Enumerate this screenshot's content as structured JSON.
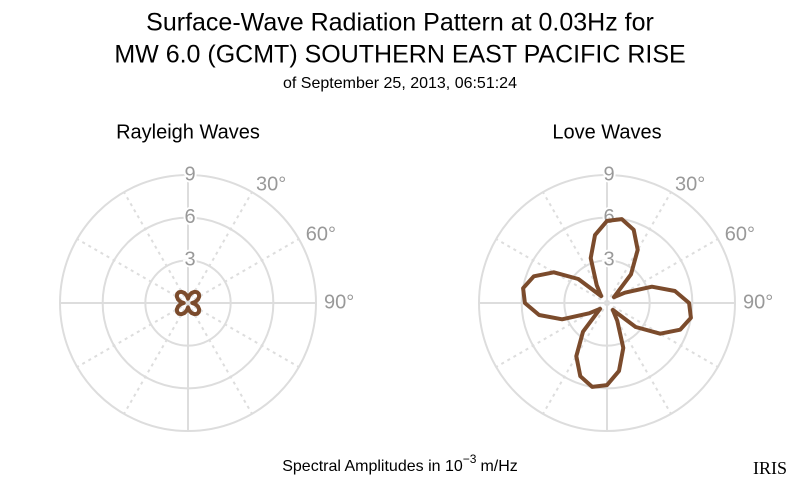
{
  "header": {
    "title_lines": [
      "Surface-Wave Radiation Pattern at 0.03Hz for",
      "MW 6.0 (GCMT) SOUTHERN EAST PACIFIC RISE"
    ],
    "subtitle": "of September 25, 2013, 06:51:24"
  },
  "chart_data": [
    {
      "type": "polar",
      "title": "Rayleigh Waves",
      "color": "#7b4b2c",
      "theta": [
        0,
        10,
        20,
        30,
        40,
        50,
        60,
        70,
        80,
        90,
        100,
        110,
        120,
        130,
        140,
        150,
        160,
        170,
        180,
        190,
        200,
        210,
        220,
        230,
        240,
        250,
        260,
        270,
        280,
        290,
        300,
        310,
        320,
        330,
        340,
        350
      ],
      "values": [
        0.3,
        0.54,
        0.75,
        0.91,
        0.99,
        0.99,
        0.91,
        0.75,
        0.54,
        0.3,
        0.54,
        0.75,
        0.91,
        0.99,
        0.99,
        0.91,
        0.75,
        0.54,
        0.3,
        0.54,
        0.75,
        0.91,
        0.99,
        0.99,
        0.91,
        0.75,
        0.54,
        0.3,
        0.54,
        0.75,
        0.91,
        0.99,
        0.99,
        0.91,
        0.75,
        0.54
      ],
      "rlim": [
        0,
        9
      ],
      "rticks": [
        3,
        6,
        9
      ],
      "thetaticks": [
        {
          "value": 30,
          "label": "30°"
        },
        {
          "value": 60,
          "label": "60°"
        },
        {
          "value": 90,
          "label": "90°"
        }
      ]
    },
    {
      "type": "polar",
      "title": "Love Waves",
      "color": "#7b4b2c",
      "theta": [
        0,
        10,
        20,
        30,
        40,
        50,
        60,
        70,
        80,
        90,
        100,
        110,
        120,
        130,
        140,
        150,
        160,
        170,
        180,
        190,
        200,
        210,
        220,
        230,
        240,
        250,
        260,
        270,
        280,
        290,
        300,
        310,
        320,
        330,
        340,
        350
      ],
      "values": [
        5.77,
        5.99,
        5.48,
        4.32,
        2.63,
        0.63,
        1.45,
        3.36,
        4.85,
        5.77,
        5.99,
        5.48,
        4.32,
        2.63,
        0.63,
        1.45,
        3.36,
        4.85,
        5.77,
        5.99,
        5.48,
        4.32,
        2.63,
        0.63,
        1.45,
        3.36,
        4.85,
        5.77,
        5.99,
        5.48,
        4.32,
        2.63,
        0.63,
        1.45,
        3.36,
        4.85
      ],
      "rlim": [
        0,
        9
      ],
      "rticks": [
        3,
        6,
        9
      ],
      "thetaticks": [
        {
          "value": 30,
          "label": "30°"
        },
        {
          "value": 60,
          "label": "60°"
        },
        {
          "value": 90,
          "label": "90°"
        }
      ]
    }
  ],
  "footer": {
    "prefix": "Spectral Amplitudes in 10",
    "exponent": "−3",
    "suffix": "m/Hz"
  },
  "logo": "IRIS"
}
